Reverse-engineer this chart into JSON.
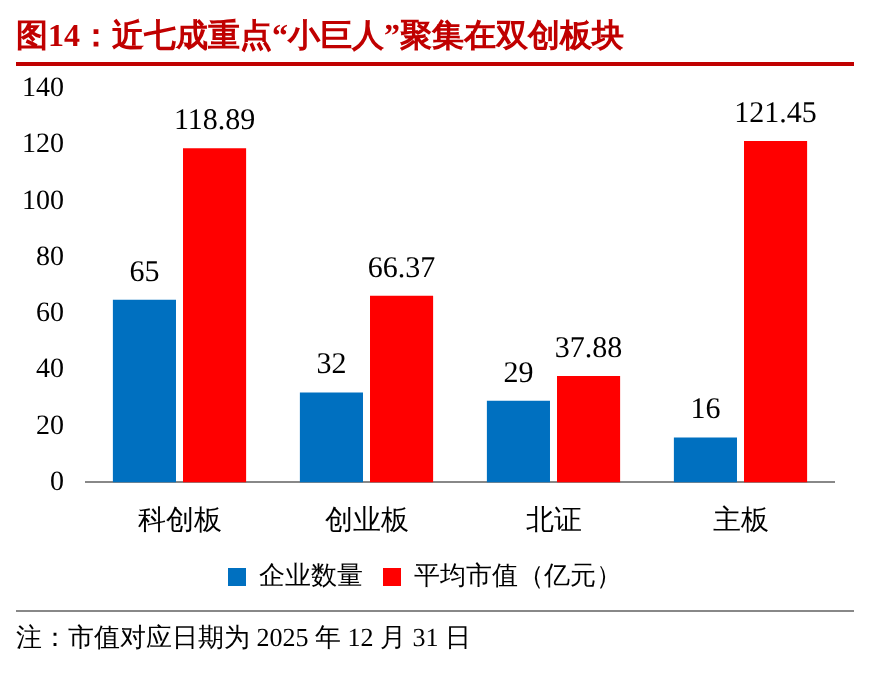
{
  "chart_data": {
    "type": "bar",
    "title": "图14：近七成重点“小巨人”聚集在双创板块",
    "categories": [
      "科创板",
      "创业板",
      "北证",
      "主板"
    ],
    "series": [
      {
        "name": "企业数量",
        "color": "#0070c0",
        "values": [
          65,
          32,
          29,
          16
        ]
      },
      {
        "name": "平均市值（亿元）",
        "color": "#ff0000",
        "values": [
          118.89,
          66.37,
          37.88,
          121.45
        ]
      }
    ],
    "ylim": [
      0,
      140
    ],
    "yticks": [
      0,
      20,
      40,
      60,
      80,
      100,
      120,
      140
    ],
    "grid": false,
    "legend": "bottom",
    "data_labels": true,
    "annotations": [
      "注：市值对应日期为 2025 年 12 月 31 日"
    ]
  }
}
